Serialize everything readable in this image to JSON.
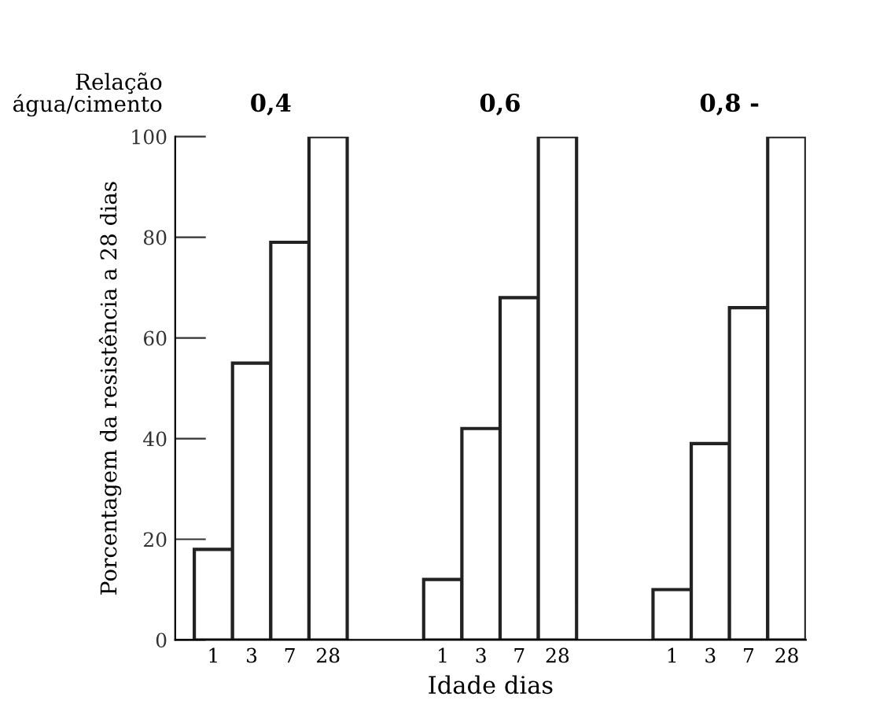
{
  "chart_data": {
    "type": "bar",
    "xlabel": "Idade dias",
    "ylabel": "Porcentagem da resistência a 28 dias",
    "categories": [
      "1",
      "3",
      "7",
      "28",
      null,
      null,
      "1",
      "3",
      "7",
      "28",
      null,
      null,
      "1",
      "3",
      "7",
      "28"
    ],
    "values": [
      18,
      55,
      79,
      100,
      null,
      null,
      12,
      42,
      68,
      100,
      null,
      null,
      10,
      39,
      66,
      100
    ],
    "color": "#ffffff",
    "ylim": [
      0,
      100
    ],
    "yticks": [
      0,
      20,
      40,
      60,
      80,
      100
    ],
    "grid": false,
    "annotations": [
      "Relação\nágua/cimento",
      "0,4",
      "0,6",
      "0,8 -"
    ]
  }
}
